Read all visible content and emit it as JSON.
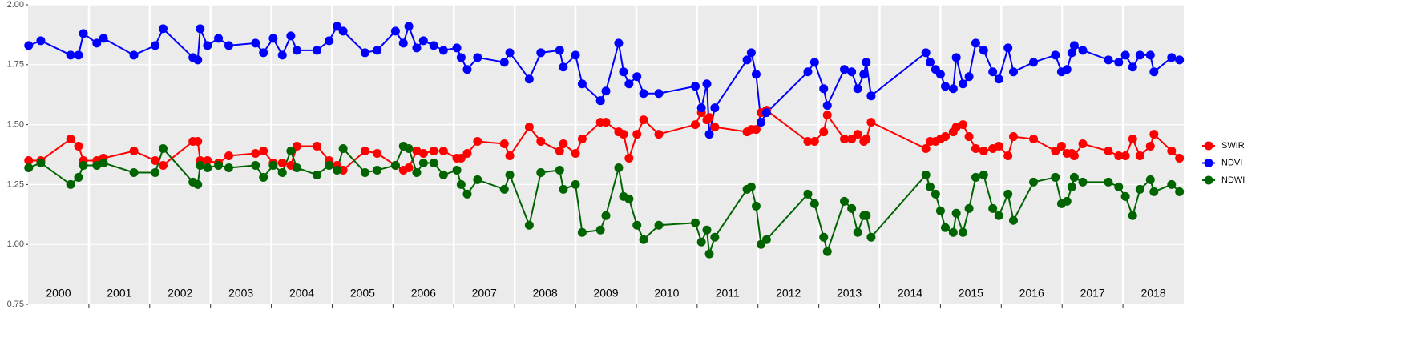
{
  "chart_data": {
    "type": "line",
    "x": [
      2000.01,
      2000.21,
      2000.7,
      2000.83,
      2000.91,
      2001.13,
      2001.24,
      2001.74,
      2002.09,
      2002.22,
      2002.71,
      2002.79,
      2002.83,
      2002.95,
      2003.13,
      2003.3,
      2003.74,
      2003.87,
      2004.03,
      2004.18,
      2004.32,
      2004.42,
      2004.75,
      2004.95,
      2005.08,
      2005.18,
      2005.54,
      2005.74,
      2006.04,
      2006.17,
      2006.26,
      2006.39,
      2006.5,
      2006.67,
      2006.83,
      2007.05,
      2007.12,
      2007.22,
      2007.39,
      2007.83,
      2007.92,
      2008.24,
      2008.43,
      2008.74,
      2008.8,
      2009.0,
      2009.11,
      2009.41,
      2009.5,
      2009.71,
      2009.79,
      2009.88,
      2010.01,
      2010.12,
      2010.37,
      2010.97,
      2011.07,
      2011.16,
      2011.2,
      2011.29,
      2011.82,
      2011.89,
      2011.97,
      2012.05,
      2012.14,
      2012.82,
      2012.93,
      2013.08,
      2013.14,
      2013.42,
      2013.54,
      2013.64,
      2013.74,
      2013.78,
      2013.86,
      2014.76,
      2014.83,
      2014.92,
      2015.0,
      2015.08,
      2015.21,
      2015.26,
      2015.37,
      2015.47,
      2015.58,
      2015.71,
      2015.86,
      2015.96,
      2016.11,
      2016.2,
      2016.53,
      2016.89,
      2016.99,
      2017.08,
      2017.16,
      2017.2,
      2017.34,
      2017.76,
      2017.93,
      2018.04,
      2018.16,
      2018.28,
      2018.45,
      2018.51,
      2018.8,
      2018.93
    ],
    "series": [
      {
        "name": "SWIR",
        "color": "#ff0000",
        "values": [
          1.35,
          1.35,
          1.44,
          1.41,
          1.35,
          1.35,
          1.36,
          1.39,
          1.35,
          1.33,
          1.43,
          1.43,
          1.35,
          1.35,
          1.34,
          1.37,
          1.38,
          1.39,
          1.34,
          1.34,
          1.33,
          1.41,
          1.41,
          1.35,
          1.33,
          1.31,
          1.39,
          1.38,
          1.33,
          1.31,
          1.32,
          1.39,
          1.38,
          1.39,
          1.39,
          1.36,
          1.36,
          1.38,
          1.43,
          1.42,
          1.37,
          1.49,
          1.43,
          1.39,
          1.42,
          1.38,
          1.44,
          1.51,
          1.51,
          1.47,
          1.46,
          1.36,
          1.46,
          1.52,
          1.46,
          1.5,
          1.55,
          1.52,
          1.53,
          1.49,
          1.47,
          1.48,
          1.48,
          1.55,
          1.56,
          1.43,
          1.43,
          1.47,
          1.54,
          1.44,
          1.44,
          1.46,
          1.43,
          1.44,
          1.51,
          1.4,
          1.43,
          1.43,
          1.44,
          1.45,
          1.47,
          1.49,
          1.5,
          1.45,
          1.4,
          1.39,
          1.4,
          1.41,
          1.37,
          1.45,
          1.44,
          1.39,
          1.41,
          1.38,
          1.38,
          1.37,
          1.42,
          1.39,
          1.37,
          1.37,
          1.44,
          1.37,
          1.41,
          1.46,
          1.39,
          1.36
        ]
      },
      {
        "name": "NDVI",
        "color": "#0000ff",
        "values": [
          1.83,
          1.85,
          1.79,
          1.79,
          1.88,
          1.84,
          1.86,
          1.79,
          1.83,
          1.9,
          1.78,
          1.77,
          1.9,
          1.83,
          1.86,
          1.83,
          1.84,
          1.8,
          1.86,
          1.79,
          1.87,
          1.81,
          1.81,
          1.85,
          1.91,
          1.89,
          1.8,
          1.81,
          1.89,
          1.84,
          1.91,
          1.82,
          1.85,
          1.83,
          1.81,
          1.82,
          1.78,
          1.73,
          1.78,
          1.76,
          1.8,
          1.69,
          1.8,
          1.81,
          1.74,
          1.79,
          1.67,
          1.6,
          1.64,
          1.84,
          1.72,
          1.67,
          1.7,
          1.63,
          1.63,
          1.66,
          1.57,
          1.67,
          1.46,
          1.57,
          1.77,
          1.8,
          1.71,
          1.51,
          1.55,
          1.72,
          1.76,
          1.65,
          1.58,
          1.73,
          1.72,
          1.65,
          1.71,
          1.76,
          1.62,
          1.8,
          1.76,
          1.73,
          1.71,
          1.66,
          1.65,
          1.78,
          1.67,
          1.7,
          1.84,
          1.81,
          1.72,
          1.69,
          1.82,
          1.72,
          1.76,
          1.79,
          1.72,
          1.73,
          1.8,
          1.83,
          1.81,
          1.77,
          1.76,
          1.79,
          1.74,
          1.79,
          1.79,
          1.72,
          1.78,
          1.77
        ]
      },
      {
        "name": "NDWI",
        "color": "#006400",
        "values": [
          1.32,
          1.34,
          1.25,
          1.28,
          1.33,
          1.33,
          1.34,
          1.3,
          1.3,
          1.4,
          1.26,
          1.25,
          1.33,
          1.32,
          1.33,
          1.32,
          1.33,
          1.28,
          1.33,
          1.3,
          1.39,
          1.32,
          1.29,
          1.33,
          1.31,
          1.4,
          1.3,
          1.31,
          1.33,
          1.41,
          1.4,
          1.3,
          1.34,
          1.34,
          1.29,
          1.31,
          1.25,
          1.21,
          1.27,
          1.23,
          1.29,
          1.08,
          1.3,
          1.31,
          1.23,
          1.25,
          1.05,
          1.06,
          1.12,
          1.32,
          1.2,
          1.19,
          1.08,
          1.02,
          1.08,
          1.09,
          1.01,
          1.06,
          0.96,
          1.03,
          1.23,
          1.24,
          1.16,
          1.0,
          1.02,
          1.21,
          1.17,
          1.03,
          0.97,
          1.18,
          1.15,
          1.05,
          1.12,
          1.12,
          1.03,
          1.29,
          1.24,
          1.21,
          1.14,
          1.07,
          1.05,
          1.13,
          1.05,
          1.15,
          1.28,
          1.29,
          1.15,
          1.12,
          1.21,
          1.1,
          1.26,
          1.28,
          1.17,
          1.18,
          1.24,
          1.28,
          1.26,
          1.26,
          1.24,
          1.2,
          1.12,
          1.23,
          1.27,
          1.22,
          1.25,
          1.22
        ]
      }
    ],
    "xlim": [
      2000.0,
      2019.0
    ],
    "xticks": [
      {
        "value": 2000.5,
        "label": "2000"
      },
      {
        "value": 2001.5,
        "label": "2001"
      },
      {
        "value": 2002.5,
        "label": "2002"
      },
      {
        "value": 2003.5,
        "label": "2003"
      },
      {
        "value": 2004.5,
        "label": "2004"
      },
      {
        "value": 2005.5,
        "label": "2005"
      },
      {
        "value": 2006.5,
        "label": "2006"
      },
      {
        "value": 2007.5,
        "label": "2007"
      },
      {
        "value": 2008.5,
        "label": "2008"
      },
      {
        "value": 2009.5,
        "label": "2009"
      },
      {
        "value": 2010.5,
        "label": "2010"
      },
      {
        "value": 2011.5,
        "label": "2011"
      },
      {
        "value": 2012.5,
        "label": "2012"
      },
      {
        "value": 2013.5,
        "label": "2013"
      },
      {
        "value": 2014.5,
        "label": "2014"
      },
      {
        "value": 2015.5,
        "label": "2015"
      },
      {
        "value": 2016.5,
        "label": "2016"
      },
      {
        "value": 2017.5,
        "label": "2017"
      },
      {
        "value": 2018.5,
        "label": "2018"
      }
    ],
    "vlines": [
      2001,
      2002,
      2003,
      2004,
      2005,
      2006,
      2007,
      2008,
      2009,
      2010,
      2011,
      2012,
      2013,
      2014,
      2015,
      2016,
      2017,
      2018
    ],
    "ylim": [
      0.75,
      2.0
    ],
    "yticks": [
      {
        "value": 0.75,
        "label": "0.75"
      },
      {
        "value": 1.0,
        "label": "1.00"
      },
      {
        "value": 1.25,
        "label": "1.25"
      },
      {
        "value": 1.5,
        "label": "1.50"
      },
      {
        "value": 1.75,
        "label": "1.75"
      },
      {
        "value": 2.0,
        "label": "2.00"
      }
    ],
    "grid": true,
    "legend": "right"
  }
}
